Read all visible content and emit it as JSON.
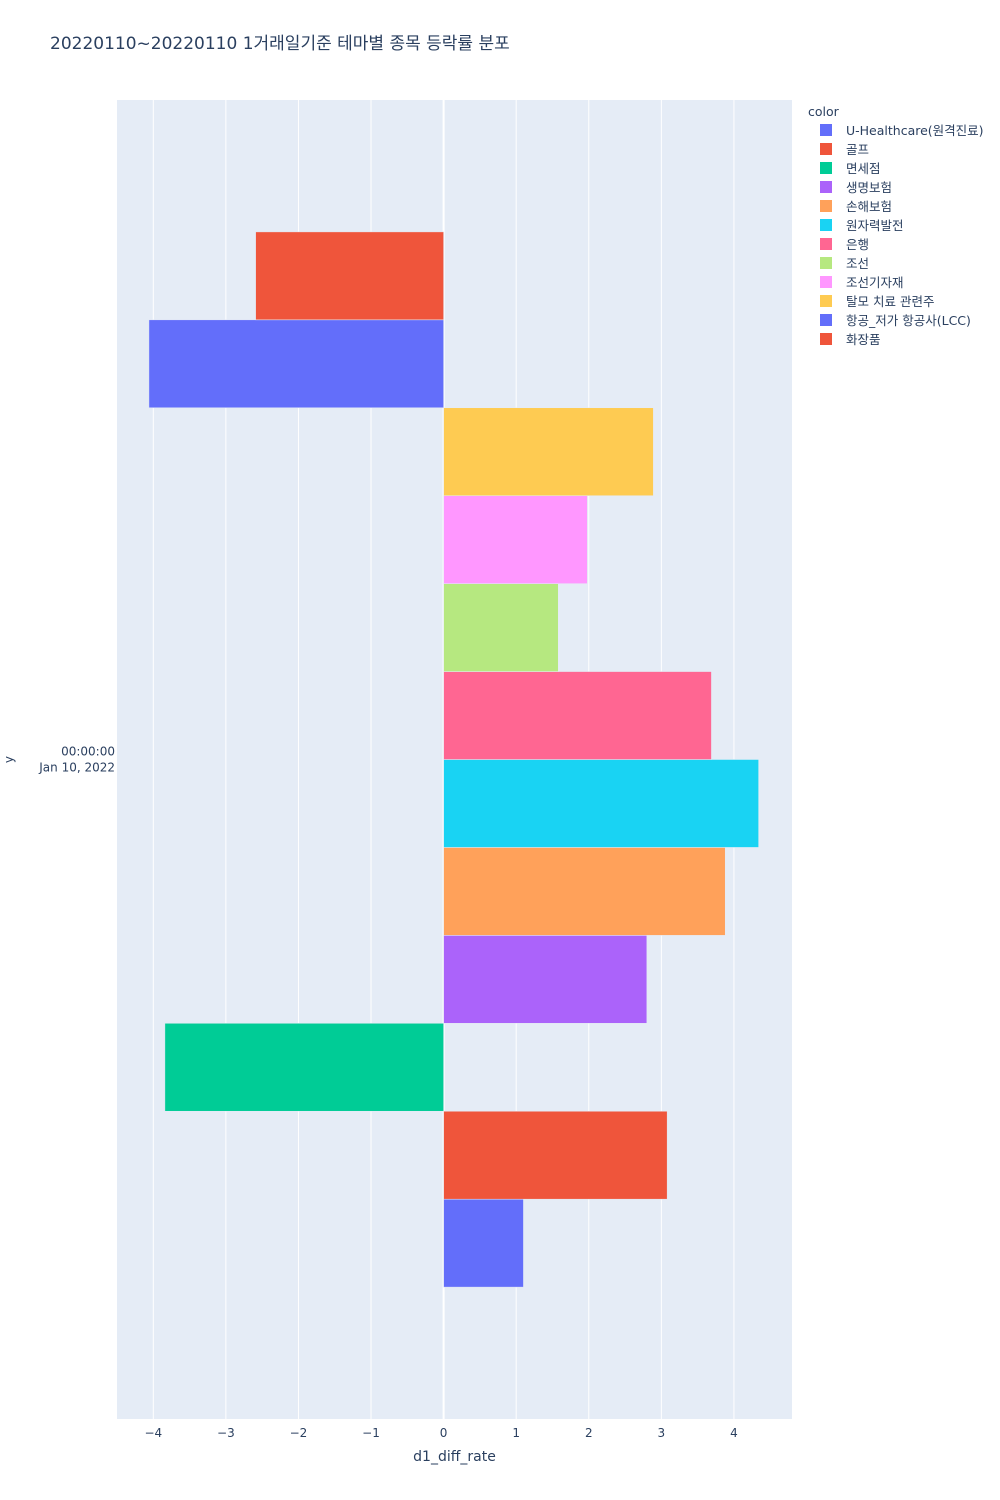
{
  "chart_data": {
    "type": "bar",
    "orientation": "horizontal",
    "barmode": "group",
    "title": "20220110~20220110 1거래일기준 테마별 종목 등락률 분포",
    "xlabel": "d1_diff_rate",
    "ylabel": "y",
    "y_category_label": [
      "00:00:00",
      "Jan 10, 2022"
    ],
    "xlim": [
      -4.5,
      4.8
    ],
    "xticks": [
      -4,
      -3,
      -2,
      -1,
      0,
      1,
      2,
      3,
      4
    ],
    "xtick_labels": [
      "−4",
      "−3",
      "−2",
      "−1",
      "0",
      "1",
      "2",
      "3",
      "4"
    ],
    "grid": true,
    "legend_position": "right",
    "legend_title": "color",
    "series": [
      {
        "name": "U-Healthcare(원격진료)",
        "value": 1.1,
        "color": "#636efa"
      },
      {
        "name": "골프",
        "value": 3.08,
        "color": "#EF553B"
      },
      {
        "name": "면세점",
        "value": -3.84,
        "color": "#00cc96"
      },
      {
        "name": "생명보험",
        "value": 2.8,
        "color": "#ab63fa"
      },
      {
        "name": "손해보험",
        "value": 3.88,
        "color": "#FFA15A"
      },
      {
        "name": "원자력발전",
        "value": 4.34,
        "color": "#19d3f3"
      },
      {
        "name": "은행",
        "value": 3.69,
        "color": "#FF6692"
      },
      {
        "name": "조선",
        "value": 1.58,
        "color": "#B6E880"
      },
      {
        "name": "조선기자재",
        "value": 1.98,
        "color": "#FF97FF"
      },
      {
        "name": "탈모 치료 관련주",
        "value": 2.89,
        "color": "#FECB52"
      },
      {
        "name": "항공_저가 항공사(LCC)",
        "value": -4.06,
        "color": "#636efa"
      },
      {
        "name": "화장품",
        "value": -2.59,
        "color": "#EF553B"
      }
    ]
  }
}
